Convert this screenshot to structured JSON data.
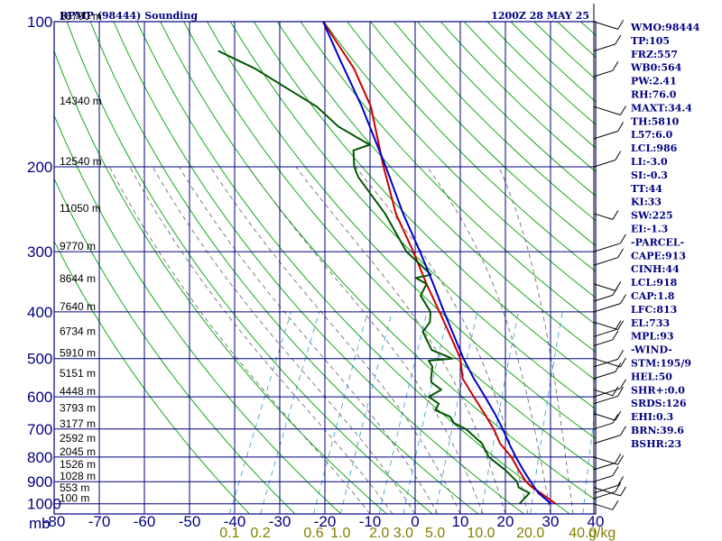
{
  "header": {
    "title": "RPMP (98444) Sounding",
    "datetime": "1200Z 28 MAY 25",
    "mixing_unit": "g/kg"
  },
  "colors": {
    "axis": "#000080",
    "dry_adiabat": "#00a000",
    "moist_adiabat": "#606060",
    "mixing_ratio": "#3399cc",
    "temperature": "#cc0000",
    "dewpoint": "#005500",
    "parcel": "#0000cc",
    "wind": "#000000",
    "mixing_label": "#808000"
  },
  "chart_data": {
    "type": "line",
    "title": "RPMP (98444) Sounding",
    "subtitle": "1200Z 28 MAY 25",
    "y_axis": {
      "label": "mb",
      "scale": "log",
      "range": [
        1050,
        100
      ],
      "ticks": [
        100,
        200,
        300,
        400,
        500,
        600,
        700,
        800,
        900,
        1000
      ]
    },
    "x_axis": {
      "label": "",
      "range": [
        -80,
        40
      ],
      "ticks": [
        -80,
        -70,
        -60,
        -50,
        -40,
        -30,
        -20,
        -10,
        0,
        10,
        20,
        30,
        40
      ],
      "skewed": true
    },
    "height_labels": [
      {
        "p": 100,
        "label": "16700 m"
      },
      {
        "p": 150,
        "label": "14340 m"
      },
      {
        "p": 200,
        "label": "12540 m"
      },
      {
        "p": 250,
        "label": "11050 m"
      },
      {
        "p": 300,
        "label": "9770 m"
      },
      {
        "p": 350,
        "label": "8644 m"
      },
      {
        "p": 400,
        "label": "7640 m"
      },
      {
        "p": 450,
        "label": "6734 m"
      },
      {
        "p": 500,
        "label": "5910 m"
      },
      {
        "p": 550,
        "label": "5151 m"
      },
      {
        "p": 600,
        "label": "4448 m"
      },
      {
        "p": 650,
        "label": "3793 m"
      },
      {
        "p": 700,
        "label": "3177 m"
      },
      {
        "p": 750,
        "label": "2592 m"
      },
      {
        "p": 800,
        "label": "2045 m"
      },
      {
        "p": 850,
        "label": "1526 m"
      },
      {
        "p": 900,
        "label": "1028 m"
      },
      {
        "p": 950,
        "label": "553 m"
      },
      {
        "p": 1000,
        "label": "100 m"
      }
    ],
    "mixing_ratio_labels": [
      "0.1",
      "0.2",
      "0.6",
      "1.0",
      "2.0",
      "3.0",
      "5.0",
      "10.0",
      "20.0",
      "40.0"
    ],
    "series": [
      {
        "name": "",
        "role": "temperature",
        "points": [
          [
            1000,
            30
          ],
          [
            950,
            25.5
          ],
          [
            925,
            23
          ],
          [
            900,
            21
          ],
          [
            850,
            18
          ],
          [
            800,
            15
          ],
          [
            750,
            11
          ],
          [
            700,
            8
          ],
          [
            650,
            4.2
          ],
          [
            600,
            0
          ],
          [
            550,
            -4.5
          ],
          [
            500,
            -7.2
          ],
          [
            450,
            -11.8
          ],
          [
            400,
            -17
          ],
          [
            350,
            -23
          ],
          [
            300,
            -29.5
          ],
          [
            250,
            -37.6
          ],
          [
            200,
            -45.5
          ],
          [
            150,
            -55
          ],
          [
            125,
            -63
          ],
          [
            100,
            -75
          ]
        ]
      },
      {
        "name": "",
        "role": "dewpoint",
        "points": [
          [
            1000,
            22
          ],
          [
            975,
            22.5
          ],
          [
            950,
            23
          ],
          [
            925,
            20
          ],
          [
            900,
            19
          ],
          [
            850,
            15
          ],
          [
            800,
            10
          ],
          [
            750,
            7
          ],
          [
            700,
            1.8
          ],
          [
            680,
            -1.5
          ],
          [
            660,
            -3
          ],
          [
            640,
            -7
          ],
          [
            620,
            -7
          ],
          [
            600,
            -10
          ],
          [
            580,
            -8
          ],
          [
            560,
            -11
          ],
          [
            550,
            -11.5
          ],
          [
            520,
            -12.5
          ],
          [
            505,
            -14
          ],
          [
            500,
            -9
          ],
          [
            480,
            -14.5
          ],
          [
            440,
            -18.5
          ],
          [
            420,
            -18
          ],
          [
            400,
            -19
          ],
          [
            370,
            -23
          ],
          [
            350,
            -23
          ],
          [
            340,
            -26
          ],
          [
            335,
            -23
          ],
          [
            300,
            -31
          ],
          [
            250,
            -40
          ],
          [
            210,
            -50
          ],
          [
            200,
            -52
          ],
          [
            185,
            -54
          ],
          [
            180,
            -51
          ],
          [
            175,
            -54
          ],
          [
            165,
            -60
          ],
          [
            150,
            -67
          ],
          [
            125,
            -85
          ],
          [
            115,
            -95
          ]
        ]
      },
      {
        "name": "",
        "role": "parcel",
        "points": [
          [
            1000,
            29
          ],
          [
            950,
            25
          ],
          [
            900,
            22
          ],
          [
            850,
            19
          ],
          [
            800,
            16
          ],
          [
            750,
            13
          ],
          [
            700,
            10
          ],
          [
            650,
            6.5
          ],
          [
            600,
            2.5
          ],
          [
            550,
            -2
          ],
          [
            500,
            -6.5
          ],
          [
            450,
            -11
          ],
          [
            400,
            -16
          ],
          [
            350,
            -21.5
          ],
          [
            300,
            -28
          ],
          [
            250,
            -36
          ],
          [
            200,
            -45
          ],
          [
            150,
            -57
          ],
          [
            120,
            -67
          ],
          [
            100,
            -75
          ]
        ]
      }
    ],
    "wind_barbs": [
      {
        "p": 1000
      },
      {
        "p": 975
      },
      {
        "p": 950
      },
      {
        "p": 925
      },
      {
        "p": 900
      },
      {
        "p": 850
      },
      {
        "p": 800
      },
      {
        "p": 750
      },
      {
        "p": 700
      },
      {
        "p": 650
      },
      {
        "p": 620
      },
      {
        "p": 600
      },
      {
        "p": 580
      },
      {
        "p": 550
      },
      {
        "p": 520
      },
      {
        "p": 500
      },
      {
        "p": 470
      },
      {
        "p": 450
      },
      {
        "p": 420
      },
      {
        "p": 400
      },
      {
        "p": 380
      },
      {
        "p": 350
      },
      {
        "p": 320
      },
      {
        "p": 300
      },
      {
        "p": 250
      },
      {
        "p": 200
      },
      {
        "p": 175
      },
      {
        "p": 150
      },
      {
        "p": 130
      },
      {
        "p": 115
      },
      {
        "p": 100
      }
    ]
  },
  "indices": [
    "WMO:98444",
    "TP:105",
    "FRZ:557",
    "WB0:564",
    "PW:2.41",
    "RH:76.0",
    "MAXT:34.4",
    "TH:5810",
    "L57:6.0",
    "LCL:986",
    "LI:-3.0",
    "SI:-0.3",
    "TT:44",
    "KI:33",
    "SW:225",
    "EI:-1.3",
    "-PARCEL-",
    "CAPE:913",
    "CINH:44",
    "LCL:918",
    "CAP:1.8",
    "LFC:813",
    "EL:733",
    "MPL:93",
    "-WIND-",
    "STM:195/9",
    "HEL:50",
    "SHR+:0.0",
    "SRDS:126",
    "EHI:0.3",
    "BRN:39.6",
    "BSHR:23"
  ]
}
